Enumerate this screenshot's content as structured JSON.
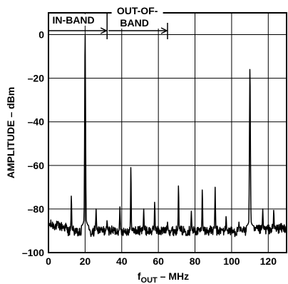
{
  "chart_data": {
    "type": "line",
    "title": "",
    "xlabel_main": "f",
    "xlabel_sub": "OUT",
    "xlabel_rest": " – MHz",
    "ylabel": "AMPLITUDE – dBm",
    "xlim": [
      0,
      130
    ],
    "ylim": [
      -100,
      10
    ],
    "x_ticks": [
      "0",
      "20",
      "40",
      "60",
      "80",
      "100",
      "120"
    ],
    "y_ticks": [
      "0",
      "–20",
      "–40",
      "–60",
      "–80",
      "–100"
    ],
    "grid": true,
    "annotations": {
      "in_band": "IN-BAND",
      "out_of_band_1": "OUT-OF-",
      "out_of_band_2": "BAND",
      "in_band_range": [
        0,
        32
      ],
      "out_of_band_range": [
        32,
        65
      ]
    },
    "noise_floor_dbm": -90,
    "series": [
      {
        "spurs": [
          {
            "x": 12.5,
            "y": -73
          },
          {
            "x": 20,
            "y": 2
          },
          {
            "x": 26,
            "y": -80
          },
          {
            "x": 32,
            "y": -85
          },
          {
            "x": 39,
            "y": -79
          },
          {
            "x": 45,
            "y": -59
          },
          {
            "x": 52,
            "y": -80
          },
          {
            "x": 58,
            "y": -76
          },
          {
            "x": 65,
            "y": -86
          },
          {
            "x": 71,
            "y": -68
          },
          {
            "x": 78,
            "y": -81
          },
          {
            "x": 84,
            "y": -70
          },
          {
            "x": 91,
            "y": -70
          },
          {
            "x": 97,
            "y": -83
          },
          {
            "x": 104,
            "y": -86
          },
          {
            "x": 110,
            "y": -14
          },
          {
            "x": 117,
            "y": -80
          },
          {
            "x": 123,
            "y": -80
          }
        ]
      }
    ]
  }
}
